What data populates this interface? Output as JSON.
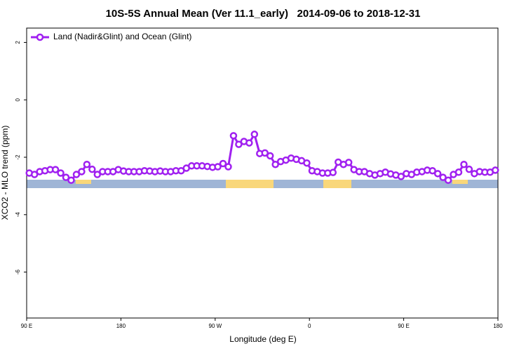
{
  "chart_data": {
    "type": "line",
    "title": "10S-5S Annual Mean (Ver 11.1_early)   2014-09-06 to 2018-12-31",
    "xlabel": "Longitude (deg E)",
    "ylabel": "XCO2 - MLO trend (ppm)",
    "xlim": [
      90,
      540
    ],
    "ylim": [
      -7.6,
      2.5
    ],
    "xticks": [
      {
        "value": 90,
        "label": "90 E"
      },
      180,
      {
        "value": 270,
        "label": "90 W"
      },
      {
        "value": 360,
        "label": "0"
      },
      {
        "value": 450,
        "label": "90 E"
      },
      {
        "value": 540,
        "label": "180"
      }
    ],
    "yticks": [
      2,
      0,
      -2,
      -4,
      -6
    ],
    "legend": "top-left",
    "x": [
      92.5,
      97.5,
      102.5,
      107.5,
      112.5,
      117.5,
      122.5,
      127.5,
      132.5,
      137.5,
      142.5,
      147.5,
      152.5,
      157.5,
      162.5,
      167.5,
      172.5,
      177.5,
      182.5,
      187.5,
      192.5,
      197.5,
      202.5,
      207.5,
      212.5,
      217.5,
      222.5,
      227.5,
      232.5,
      237.5,
      242.5,
      247.5,
      252.5,
      257.5,
      262.5,
      267.5,
      272.5,
      277.5,
      282.5,
      287.5,
      292.5,
      297.5,
      302.5,
      307.5,
      312.5,
      317.5,
      322.5,
      327.5,
      332.5,
      337.5,
      342.5,
      347.5,
      352.5,
      357.5,
      362.5,
      367.5,
      372.5,
      377.5,
      382.5,
      387.5,
      392.5,
      397.5,
      402.5,
      407.5,
      412.5,
      417.5,
      422.5,
      427.5,
      432.5,
      437.5,
      442.5,
      447.5,
      452.5,
      457.5,
      462.5,
      467.5,
      472.5,
      477.5,
      482.5,
      487.5,
      492.5,
      497.5,
      502.5,
      507.5,
      512.5,
      517.5,
      522.5,
      527.5,
      532.5,
      537.5
    ],
    "series": [
      {
        "name": "Land (Nadir&Glint) and Ocean (Glint)",
        "color": "#a020f0",
        "values": [
          -2.55,
          -2.6,
          -2.5,
          -2.47,
          -2.43,
          -2.43,
          -2.55,
          -2.7,
          -2.8,
          -2.6,
          -2.5,
          -2.25,
          -2.42,
          -2.6,
          -2.5,
          -2.5,
          -2.5,
          -2.43,
          -2.48,
          -2.5,
          -2.5,
          -2.5,
          -2.47,
          -2.48,
          -2.5,
          -2.48,
          -2.5,
          -2.5,
          -2.47,
          -2.47,
          -2.38,
          -2.3,
          -2.3,
          -2.3,
          -2.32,
          -2.35,
          -2.33,
          -2.22,
          -2.33,
          -1.25,
          -1.55,
          -1.45,
          -1.5,
          -1.2,
          -1.87,
          -1.85,
          -1.95,
          -2.25,
          -2.15,
          -2.1,
          -2.03,
          -2.07,
          -2.12,
          -2.2,
          -2.47,
          -2.5,
          -2.55,
          -2.55,
          -2.53,
          -2.17,
          -2.25,
          -2.18,
          -2.43,
          -2.5,
          -2.5,
          -2.57,
          -2.62,
          -2.57,
          -2.52,
          -2.58,
          -2.62,
          -2.67,
          -2.57,
          -2.6,
          -2.52,
          -2.5,
          -2.45,
          -2.47,
          -2.57,
          -2.7,
          -2.8,
          -2.6,
          -2.52,
          -2.25,
          -2.42,
          -2.57,
          -2.5,
          -2.52,
          -2.52,
          -2.45
        ]
      }
    ]
  }
}
